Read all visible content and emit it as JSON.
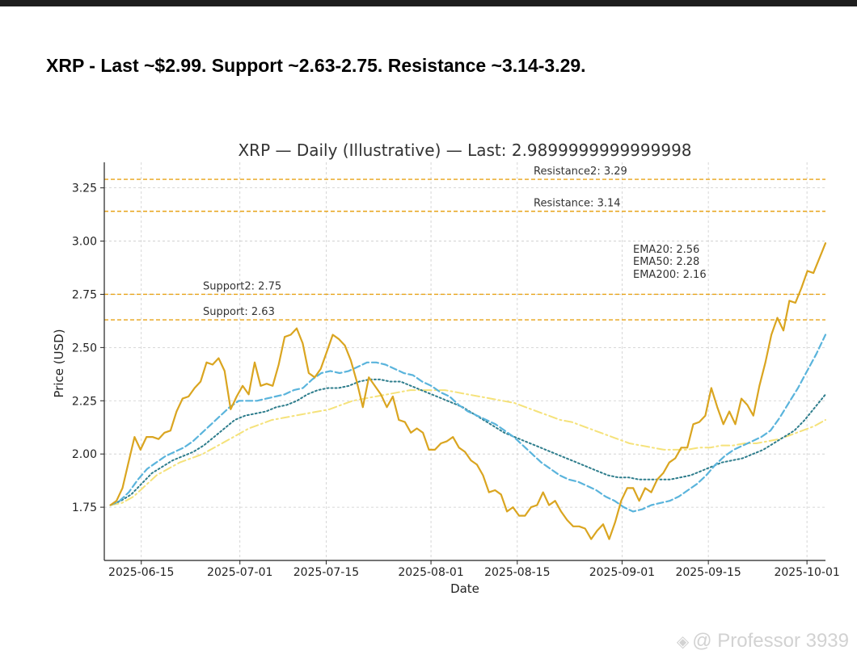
{
  "headline": "XRP - Last ~$2.99. Support ~2.63-2.75. Resistance ~3.14-3.29.",
  "watermark": {
    "text": "@ Professor 3939",
    "icon": "binance-diamond-icon"
  },
  "colors": {
    "price": "#DAA520",
    "ema20": "#5AB4DC",
    "ema50": "#2E7D8C",
    "ema200": "#F5E27A",
    "level": "#E8A317",
    "grid": "#cccccc",
    "text": "#333333"
  },
  "chart_data": {
    "type": "line",
    "title": "XRP — Daily (Illustrative) — Last: 2.9899999999999998",
    "xlabel": "Date",
    "ylabel": "Price (USD)",
    "ylim": [
      1.5,
      3.37
    ],
    "y_ticks": [
      "1.75",
      "2.00",
      "2.25",
      "2.50",
      "2.75",
      "3.00",
      "3.25"
    ],
    "x_ticks": [
      "2025-06-15",
      "2025-07-01",
      "2025-07-15",
      "2025-08-01",
      "2025-08-15",
      "2025-09-01",
      "2025-09-15",
      "2025-10-01"
    ],
    "grid": true,
    "x_start": "2025-06-09",
    "x_end": "2025-10-04",
    "levels": [
      {
        "label": "Resistance2: 3.29",
        "value": 3.29
      },
      {
        "label": "Resistance: 3.14",
        "value": 3.14
      },
      {
        "label": "Support2: 2.75",
        "value": 2.75
      },
      {
        "label": "Support: 2.63",
        "value": 2.63
      }
    ],
    "ema_labels": [
      "EMA20: 2.56",
      "EMA50: 2.28",
      "EMA200: 2.16"
    ],
    "series": [
      {
        "name": "Price",
        "values": [
          1.76,
          1.78,
          1.84,
          1.96,
          2.08,
          2.02,
          2.08,
          2.08,
          2.07,
          2.1,
          2.11,
          2.2,
          2.26,
          2.27,
          2.31,
          2.34,
          2.43,
          2.42,
          2.45,
          2.39,
          2.21,
          2.27,
          2.32,
          2.28,
          2.43,
          2.32,
          2.33,
          2.32,
          2.42,
          2.55,
          2.56,
          2.59,
          2.52,
          2.38,
          2.36,
          2.4,
          2.48,
          2.56,
          2.54,
          2.51,
          2.44,
          2.34,
          2.22,
          2.36,
          2.32,
          2.28,
          2.22,
          2.27,
          2.16,
          2.15,
          2.1,
          2.12,
          2.1,
          2.02,
          2.02,
          2.05,
          2.06,
          2.08,
          2.03,
          2.01,
          1.97,
          1.95,
          1.9,
          1.82,
          1.83,
          1.81,
          1.73,
          1.75,
          1.71,
          1.71,
          1.75,
          1.76,
          1.82,
          1.76,
          1.78,
          1.73,
          1.69,
          1.66,
          1.66,
          1.65,
          1.6,
          1.64,
          1.67,
          1.6,
          1.68,
          1.78,
          1.84,
          1.84,
          1.78,
          1.84,
          1.82,
          1.88,
          1.91,
          1.96,
          1.98,
          2.03,
          2.03,
          2.14,
          2.15,
          2.18,
          2.31,
          2.22,
          2.14,
          2.2,
          2.14,
          2.26,
          2.23,
          2.18,
          2.32,
          2.43,
          2.56,
          2.64,
          2.58,
          2.72,
          2.71,
          2.78,
          2.86,
          2.85,
          2.92,
          2.99
        ]
      },
      {
        "name": "EMA20",
        "values": [
          1.76,
          1.78,
          1.82,
          1.88,
          1.93,
          1.96,
          1.99,
          2.01,
          2.03,
          2.06,
          2.1,
          2.14,
          2.18,
          2.22,
          2.25,
          2.25,
          2.25,
          2.26,
          2.27,
          2.28,
          2.3,
          2.31,
          2.35,
          2.38,
          2.39,
          2.38,
          2.39,
          2.41,
          2.43,
          2.43,
          2.42,
          2.4,
          2.38,
          2.37,
          2.34,
          2.32,
          2.29,
          2.27,
          2.23,
          2.2,
          2.18,
          2.16,
          2.14,
          2.11,
          2.08,
          2.04,
          2.0,
          1.96,
          1.93,
          1.9,
          1.88,
          1.87,
          1.85,
          1.83,
          1.8,
          1.78,
          1.75,
          1.73,
          1.74,
          1.76,
          1.77,
          1.78,
          1.8,
          1.83,
          1.86,
          1.9,
          1.95,
          1.99,
          2.02,
          2.04,
          2.06,
          2.08,
          2.11,
          2.17,
          2.24,
          2.31,
          2.39,
          2.47,
          2.56
        ]
      },
      {
        "name": "EMA50",
        "values": [
          1.76,
          1.78,
          1.81,
          1.86,
          1.91,
          1.94,
          1.97,
          1.99,
          2.01,
          2.04,
          2.08,
          2.12,
          2.16,
          2.18,
          2.19,
          2.2,
          2.22,
          2.23,
          2.25,
          2.28,
          2.3,
          2.31,
          2.31,
          2.32,
          2.34,
          2.35,
          2.35,
          2.34,
          2.34,
          2.32,
          2.3,
          2.28,
          2.26,
          2.24,
          2.22,
          2.19,
          2.16,
          2.13,
          2.1,
          2.08,
          2.06,
          2.04,
          2.02,
          2.0,
          1.98,
          1.96,
          1.94,
          1.92,
          1.9,
          1.89,
          1.89,
          1.88,
          1.88,
          1.88,
          1.88,
          1.89,
          1.9,
          1.92,
          1.94,
          1.96,
          1.97,
          1.98,
          2.0,
          2.02,
          2.05,
          2.08,
          2.11,
          2.16,
          2.22,
          2.28
        ]
      },
      {
        "name": "EMA200",
        "values": [
          1.76,
          1.77,
          1.8,
          1.85,
          1.9,
          1.93,
          1.96,
          1.98,
          2.0,
          2.03,
          2.06,
          2.09,
          2.12,
          2.14,
          2.16,
          2.17,
          2.18,
          2.19,
          2.2,
          2.21,
          2.23,
          2.25,
          2.26,
          2.27,
          2.28,
          2.29,
          2.3,
          2.3,
          2.3,
          2.3,
          2.29,
          2.28,
          2.27,
          2.26,
          2.25,
          2.24,
          2.22,
          2.2,
          2.18,
          2.16,
          2.15,
          2.13,
          2.11,
          2.09,
          2.07,
          2.05,
          2.04,
          2.03,
          2.02,
          2.02,
          2.02,
          2.03,
          2.03,
          2.04,
          2.04,
          2.05,
          2.05,
          2.06,
          2.07,
          2.09,
          2.11,
          2.13,
          2.16
        ]
      }
    ]
  }
}
